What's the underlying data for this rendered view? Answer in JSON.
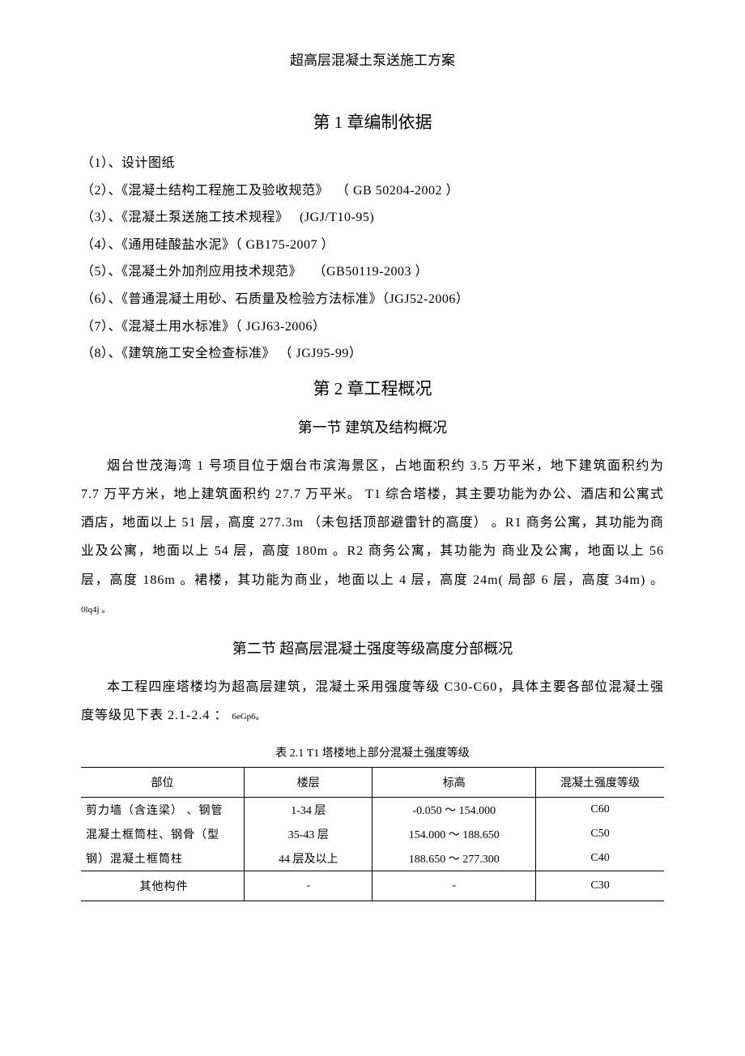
{
  "doc_title": "超高层混凝土泵送施工方案",
  "ch1": {
    "title": "第 1 章编制依据",
    "items": [
      "（1）、设计图纸",
      "（2）、《混凝土结构工程施工及验收规范》  （ GB 50204-2002 ）",
      "（3）、《混凝土泵送施工技术规程》   (JGJ/T10-95)",
      "（4）、《通用硅酸盐水泥》（ GB175-2007 ）",
      "（5）、《混凝土外加剂应用技术规范》   （GB50119-2003 ）",
      "（6）、《普通混凝土用砂、石质量及检验方法标准》（JGJ52-2006）",
      "（7）、《混凝土用水标准》（ JGJ63-2006）",
      "（8）、《建筑施工安全检查标准》 （ JGJ95-99）"
    ]
  },
  "ch2": {
    "title": "第 2 章工程概况",
    "sec1": {
      "title": "第一节  建筑及结构概况",
      "para": "烟台世茂海湾 1 号项目位于烟台市滨海景区，占地面积约    3.5 万平米，地下建筑面积约为 7.7 万平方米，地上建筑面积约   27.7 万平米。 T1 综合塔楼，其主要功能为办公、酒店和公寓式酒店，地面以上   51 层，高度 277.3m （未包括顶部避雷针的高度） 。R1 商务公寓，其功能为商业及公寓，地面以上    54 层，高度 180m 。R2 商务公寓，其功能为 商业及公寓，地面以上    56 层，高度 186m 。裙楼，其功能为商业，地面以上  4 层，高度 24m( 局部 6 层，高度 34m) 。",
      "para_code": "0lq4j 。"
    },
    "sec2": {
      "title": "第二节   超高层混凝土强度等级高度分部概况",
      "para": "本工程四座塔楼均为超高层建筑，混凝土采用强度等级    C30-C60，具体主要各部位混凝土强度等级见下表   2.1-2.4 ：",
      "para_code": "6eGp6。"
    }
  },
  "table": {
    "caption": "表 2.1 T1 塔楼地上部分混凝土强度等级",
    "headers": [
      "部位",
      "楼层",
      "标高",
      "混凝土强度等级"
    ],
    "col_widths": [
      "28%",
      "22%",
      "28%",
      "22%"
    ],
    "group1": {
      "part_lines": [
        "剪力墙（含连梁）   、钢管",
        "混凝土框筒柱、钢骨（型",
        "钢）混凝土框筒柱"
      ],
      "rows": [
        {
          "floor": "1-34 层",
          "elev": "-0.050 ～ 154.000",
          "grade": "C60"
        },
        {
          "floor": "35-43 层",
          "elev": "154.000 ～ 188.650",
          "grade": "C50"
        },
        {
          "floor": "44 层及以上",
          "elev": "188.650 ～ 277.300",
          "grade": "C40"
        }
      ]
    },
    "row_other": {
      "part": "其他构件",
      "floor": "-",
      "elev": "-",
      "grade": "C30"
    }
  },
  "colors": {
    "text": "#000000",
    "background": "#ffffff",
    "border": "#000000"
  },
  "fonts": {
    "header_size": 17,
    "chapter_size": 21,
    "section_size": 18,
    "body_size": 16,
    "table_size": 14,
    "caption_size": 14
  }
}
